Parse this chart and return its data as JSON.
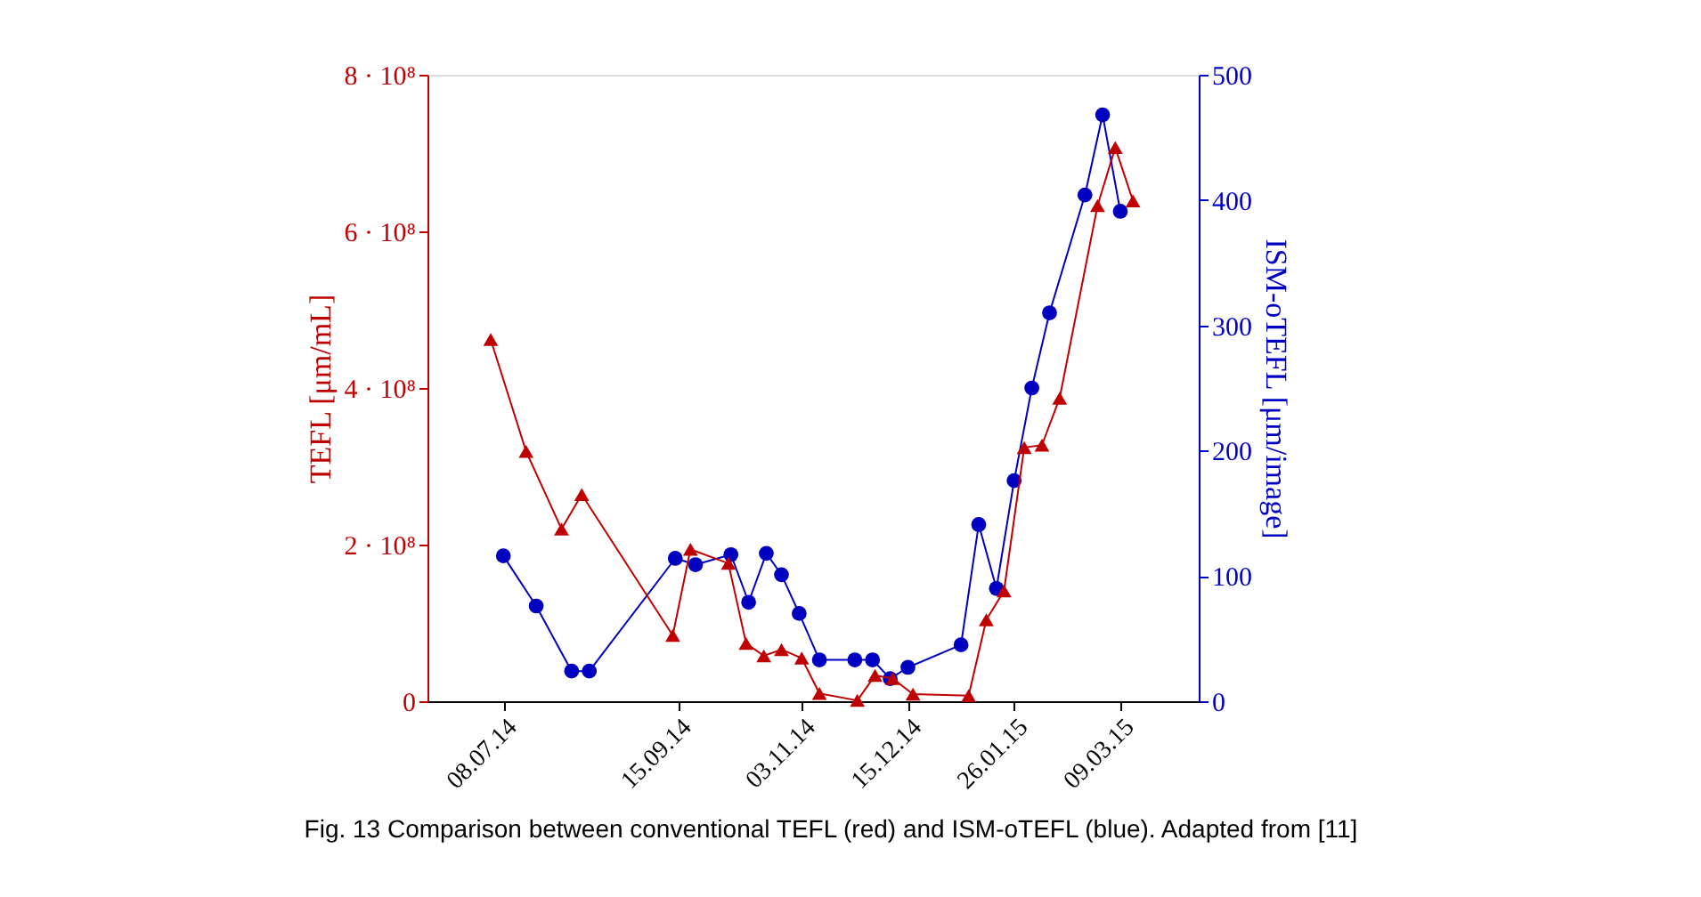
{
  "chart_data": {
    "type": "line",
    "ylabel": "TEFL [μm/mL]",
    "y2label": "ISM-oTEFL [μm/image]",
    "annotations": [
      "Fig. 13 Comparison between conventional TEFL (red) and ISM-oTEFL (blue). Adapted from [11]"
    ],
    "xlim": [
      "2014-06-08",
      "2015-04-09"
    ],
    "xticks": [
      {
        "value": "2014-07-08",
        "label": "08.07.14"
      },
      {
        "value": "2014-09-15",
        "label": "15.09.14"
      },
      {
        "value": "2014-11-03",
        "label": "03.11.14"
      },
      {
        "value": "2014-12-15",
        "label": "15.12.14"
      },
      {
        "value": "2015-01-26",
        "label": "26.01.15"
      },
      {
        "value": "2015-03-09",
        "label": "09.03.15"
      }
    ],
    "ylim": [
      0,
      800000000
    ],
    "yticks": [
      0,
      {
        "value": 200000000,
        "label": "2 · 10⁸"
      },
      {
        "value": 400000000,
        "label": "4 · 10⁸"
      },
      {
        "value": 600000000,
        "label": "6 · 10⁸"
      },
      {
        "value": 800000000,
        "label": "8 · 10⁸"
      }
    ],
    "y2lim": [
      0,
      500
    ],
    "y2ticks": [
      0,
      100,
      200,
      300,
      400,
      500
    ],
    "grid": false,
    "legend": false,
    "line_style": "solid",
    "series": [
      {
        "color": "#c00000",
        "marker": "triangle",
        "x": [
          "2014-07-03",
          "2014-07-17",
          "2014-07-31",
          "2014-08-08",
          "2014-09-13",
          "2014-09-20",
          "2014-10-05",
          "2014-10-12",
          "2014-10-19",
          "2014-10-26",
          "2014-11-03",
          "2014-11-10",
          "2014-11-25",
          "2014-12-02",
          "2014-12-09",
          "2014-12-17",
          "2015-01-08",
          "2015-01-15",
          "2015-01-22",
          "2015-01-30",
          "2015-02-06",
          "2015-02-13",
          "2015-02-28",
          "2015-03-07",
          "2015-03-14"
        ],
        "values": [
          462000000,
          319000000,
          220000000,
          264000000,
          84000000,
          194000000,
          176000000,
          74000000,
          58000000,
          66000000,
          55000000,
          10000000,
          1000000,
          33000000,
          29000000,
          9000000,
          7000000,
          104000000,
          141000000,
          324000000,
          327000000,
          387000000,
          633000000,
          707000000,
          639000000
        ]
      },
      {
        "color": "#0000c0",
        "marker": "circle",
        "axis": "y2",
        "x": [
          "2014-07-08",
          "2014-07-21",
          "2014-08-04",
          "2014-08-11",
          "2014-09-14",
          "2014-09-22",
          "2014-10-06",
          "2014-10-13",
          "2014-10-20",
          "2014-10-26",
          "2014-11-02",
          "2014-11-10",
          "2014-11-24",
          "2014-12-01",
          "2014-12-08",
          "2014-12-15",
          "2015-01-05",
          "2015-01-12",
          "2015-01-19",
          "2015-01-26",
          "2015-02-02",
          "2015-02-09",
          "2015-02-23",
          "2015-03-02",
          "2015-03-09"
        ],
        "values": [
          116,
          76,
          24,
          24,
          114,
          109,
          117,
          79,
          118,
          101,
          70,
          33,
          33,
          33,
          18,
          27,
          45,
          141,
          90,
          176,
          250,
          310,
          404,
          468,
          391
        ]
      }
    ]
  }
}
